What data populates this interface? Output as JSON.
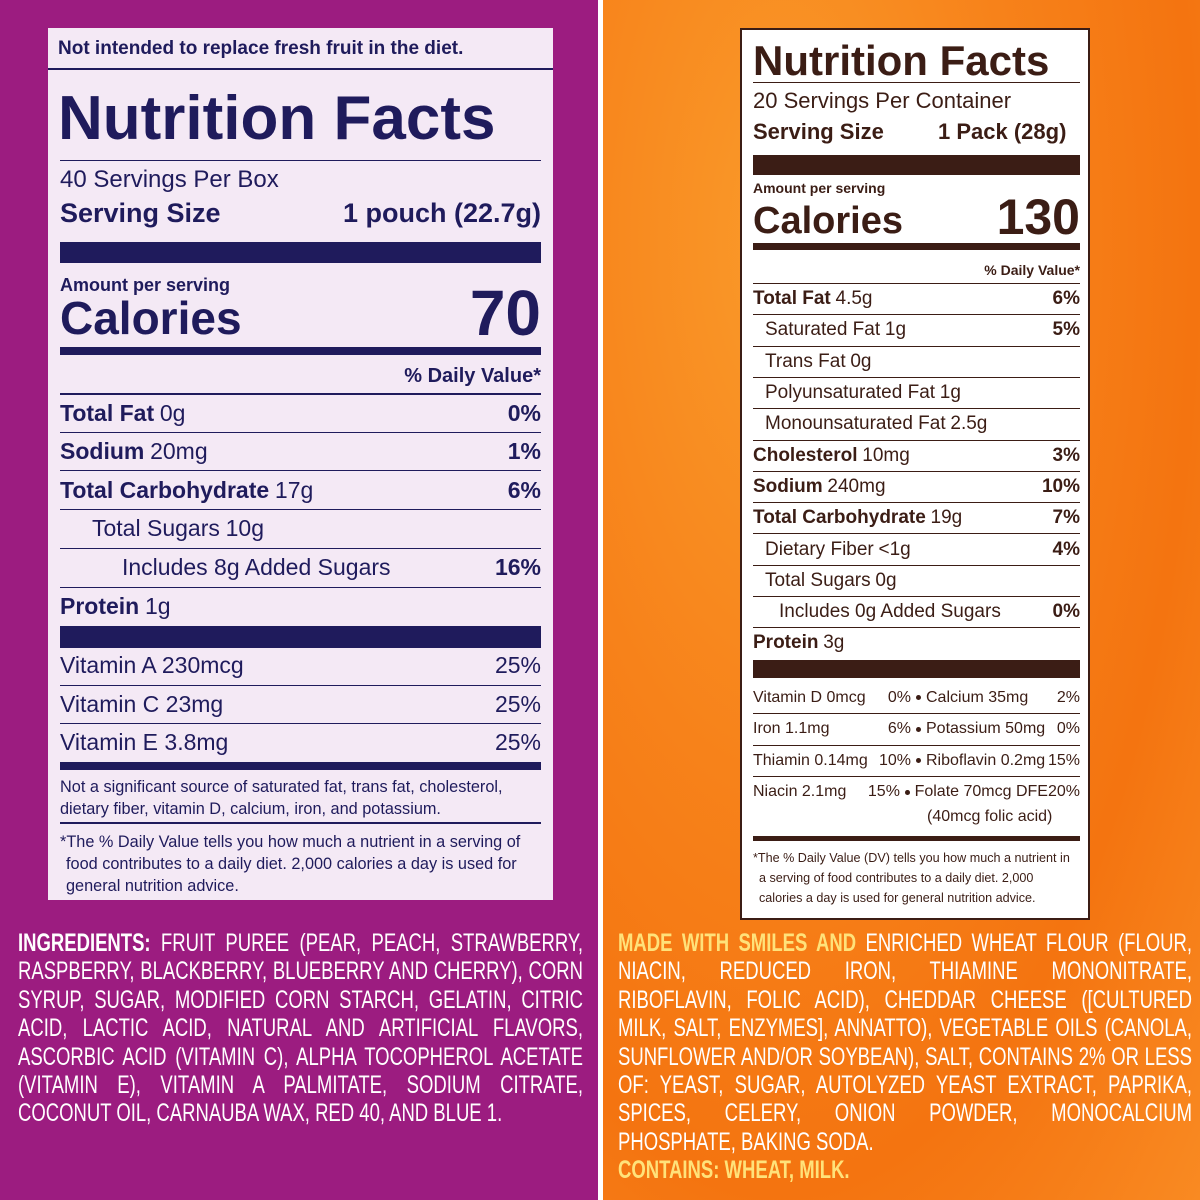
{
  "left": {
    "note": "Not intended to replace fresh fruit in the diet.",
    "title": "Nutrition Facts",
    "servings": "40 Servings Per Box",
    "serving_size": {
      "label": "Serving Size",
      "value": "1 pouch (22.7g)"
    },
    "amount_per_serving": "Amount per serving",
    "calories": {
      "label": "Calories",
      "value": "70"
    },
    "daily_value_header": "% Daily Value*",
    "nutrients": [
      {
        "name": "Total Fat",
        "amount": "0g",
        "dv": "0%"
      },
      {
        "name": "Sodium",
        "amount": "20mg",
        "dv": "1%"
      },
      {
        "name": "Total Carbohydrate",
        "amount": "17g",
        "dv": "6%"
      },
      {
        "name": "Total Sugars",
        "amount": "10g"
      },
      {
        "name": "Includes 8g Added Sugars",
        "dv": "16%"
      },
      {
        "name": "Protein",
        "amount": "1g"
      }
    ],
    "vitamins": [
      {
        "name": "Vitamin A 230mcg",
        "dv": "25%"
      },
      {
        "name": "Vitamin C 23mg",
        "dv": "25%"
      },
      {
        "name": "Vitamin E 3.8mg",
        "dv": "25%"
      }
    ],
    "not_significant": "Not a significant source of saturated fat, trans fat, cholesterol, dietary fiber, vitamin D, calcium, iron, and potassium.",
    "footnote": "*The % Daily Value tells you how much a nutrient in a serving of food contributes to a daily diet. 2,000 calories a day is used for general nutrition advice.",
    "ingredients": {
      "label": "INGREDIENTS:",
      "text": "FRUIT PUREE (PEAR, PEACH, STRAWBERRY, RASPBERRY, BLACKBERRY, BLUEBERRY AND CHERRY), CORN SYRUP, SUGAR, MODIFIED CORN STARCH, GELATIN, CITRIC ACID, LACTIC ACID, NATURAL AND ARTIFICIAL FLAVORS, ASCORBIC ACID (VITAMIN C), ALPHA TOCOPHEROL ACETATE (VITAMIN E), VITAMIN A PALMITATE, SODIUM CITRATE, COCONUT OIL, CARNAUBA WAX, RED 40, AND BLUE 1."
    }
  },
  "right": {
    "title": "Nutrition Facts",
    "servings": "20 Servings Per Container",
    "serving_size": {
      "label": "Serving Size",
      "value": "1 Pack (28g)"
    },
    "amount_per_serving": "Amount per serving",
    "calories": {
      "label": "Calories",
      "value": "130"
    },
    "daily_value_header": "% Daily Value*",
    "nutrients": [
      {
        "name": "Total Fat",
        "amount": "4.5g",
        "dv": "6%"
      },
      {
        "name": "Saturated Fat",
        "amount": "1g",
        "dv": "5%"
      },
      {
        "name": "Trans Fat",
        "amount": "0g"
      },
      {
        "name": "Polyunsaturated Fat",
        "amount": "1g"
      },
      {
        "name": "Monounsaturated Fat",
        "amount": "2.5g"
      },
      {
        "name": "Cholesterol",
        "amount": "10mg",
        "dv": "3%"
      },
      {
        "name": "Sodium",
        "amount": "240mg",
        "dv": "10%"
      },
      {
        "name": "Total Carbohydrate",
        "amount": "19g",
        "dv": "7%"
      },
      {
        "name": "Dietary Fiber",
        "amount": "<1g",
        "dv": "4%"
      },
      {
        "name": "Total Sugars",
        "amount": "0g"
      },
      {
        "name": "Includes 0g Added Sugars",
        "dv": "0%"
      },
      {
        "name": "Protein",
        "amount": "3g"
      }
    ],
    "vitamins": [
      {
        "left": {
          "name": "Vitamin D 0mcg",
          "dv": "0%"
        },
        "right": {
          "name": "Calcium 35mg",
          "dv": "2%"
        }
      },
      {
        "left": {
          "name": "Iron 1.1mg",
          "dv": "6%"
        },
        "right": {
          "name": "Potassium 50mg",
          "dv": "0%"
        }
      },
      {
        "left": {
          "name": "Thiamin 0.14mg",
          "dv": "10%"
        },
        "right": {
          "name": "Riboflavin 0.2mg",
          "dv": "15%"
        }
      },
      {
        "left": {
          "name": "Niacin 2.1mg",
          "dv": "15%"
        },
        "right": {
          "name": "Folate 70mcg DFE",
          "dv": "20%",
          "note": "(40mcg folic acid)"
        }
      }
    ],
    "footnote": "*The % Daily Value (DV) tells you how much a nutrient in a serving of food contributes to a daily diet. 2,000 calories a day is used for general nutrition advice.",
    "ingredients": {
      "label": "MADE WITH SMILES AND",
      "text": "ENRICHED WHEAT FLOUR (FLOUR, NIACIN, REDUCED IRON, THIAMINE MONONITRATE, RIBOFLAVIN, FOLIC ACID), CHEDDAR CHEESE ([CULTURED MILK, SALT, ENZYMES], ANNATTO), VEGETABLE OILS (CANOLA, SUNFLOWER AND/OR SOYBEAN), SALT, CONTAINS 2% OR LESS OF: YEAST, SUGAR, AUTOLYZED YEAST EXTRACT, PAPRIKA, SPICES, CELERY, ONION POWDER, MONOCALCIUM PHOSPHATE, BAKING SODA.",
      "contains": "CONTAINS: WHEAT, MILK."
    }
  }
}
